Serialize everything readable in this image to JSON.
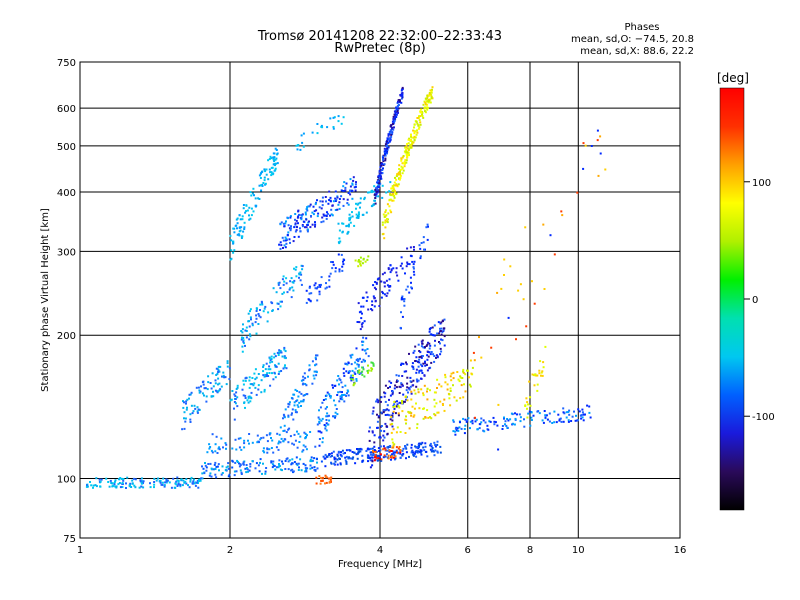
{
  "chart_data": {
    "type": "scatter",
    "title": "Tromsø 20141208 22:32:00–22:33:43",
    "subtitle": "RwPretec (8p)",
    "xlabel": "Frequency [MHz]",
    "ylabel": "Stationary phase Virtual Height [km]",
    "x_scale": "log",
    "y_scale": "log",
    "xlim": [
      1,
      16
    ],
    "ylim": [
      75,
      750
    ],
    "x_ticks": [
      1,
      2,
      4,
      6,
      8,
      10,
      16
    ],
    "y_ticks": [
      75,
      100,
      200,
      300,
      400,
      500,
      600,
      750
    ],
    "grid": true,
    "stats": {
      "heading": "Phases",
      "line1": "mean, sd,O:  −74.5, 20.8",
      "line2": "mean, sd,X:   88.6, 22.2"
    },
    "colorbar": {
      "label": "[deg]",
      "range": [
        -180,
        180
      ],
      "ticks": [
        100,
        0,
        -100
      ],
      "colors": [
        "#000000",
        "#2a0a5a",
        "#1a1adc",
        "#0060ff",
        "#00c8f0",
        "#00e0b0",
        "#00f000",
        "#b0f000",
        "#ffff00",
        "#ffa000",
        "#ff3000",
        "#ff0000"
      ]
    },
    "series": [
      {
        "segments": [
          {
            "x0": 1.03,
            "x1": 1.75,
            "y0": 98,
            "y1": 98,
            "n": 150,
            "spread": 2.5,
            "colors": [
              "#00b4f0",
              "#1e64ff",
              "#00c8f0"
            ]
          },
          {
            "x0": 1.75,
            "x1": 3.1,
            "y0": 104,
            "y1": 108,
            "n": 150,
            "spread": 4,
            "colors": [
              "#1e64ff",
              "#00b4f0",
              "#0050ff"
            ]
          },
          {
            "x0": 3.1,
            "x1": 5.3,
            "y0": 110,
            "y1": 116,
            "n": 220,
            "spread": 4,
            "colors": [
              "#0028ff",
              "#1e64ff",
              "#0050e0"
            ]
          },
          {
            "x0": 3.85,
            "x1": 4.4,
            "y0": 112,
            "y1": 114,
            "n": 35,
            "spread": 3,
            "colors": [
              "#ff3c00",
              "#ff8000",
              "#ff0000"
            ]
          },
          {
            "x0": 2.95,
            "x1": 3.2,
            "y0": 99,
            "y1": 100,
            "n": 25,
            "spread": 2,
            "colors": [
              "#ff5000",
              "#ff8020"
            ]
          },
          {
            "x0": 1.8,
            "x1": 3.0,
            "y0": 118,
            "y1": 120,
            "n": 90,
            "spread": 6,
            "colors": [
              "#00a0ff",
              "#1e64ff"
            ]
          },
          {
            "x0": 1.6,
            "x1": 2.0,
            "y0": 135,
            "y1": 170,
            "n": 90,
            "spread": 10,
            "colors": [
              "#1e64ff",
              "#00b4f0"
            ]
          },
          {
            "x0": 2.0,
            "x1": 2.6,
            "y0": 140,
            "y1": 180,
            "n": 120,
            "spread": 12,
            "colors": [
              "#00b4f0",
              "#1e64ff",
              "#00c8f0"
            ]
          },
          {
            "x0": 2.5,
            "x1": 3.0,
            "y0": 120,
            "y1": 175,
            "n": 80,
            "spread": 10,
            "colors": [
              "#00a0ff",
              "#1e64ff"
            ]
          },
          {
            "x0": 3.0,
            "x1": 3.8,
            "y0": 125,
            "y1": 190,
            "n": 140,
            "spread": 15,
            "colors": [
              "#1e64ff",
              "#0028ff",
              "#00a0ff"
            ]
          },
          {
            "x0": 3.5,
            "x1": 3.9,
            "y0": 160,
            "y1": 175,
            "n": 25,
            "spread": 5,
            "colors": [
              "#a0f000",
              "#40e040"
            ]
          },
          {
            "x0": 3.8,
            "x1": 5.4,
            "y0": 120,
            "y1": 205,
            "n": 260,
            "spread": 18,
            "colors": [
              "#0028ff",
              "#1e1edc",
              "#1e64ff",
              "#2a0a8a"
            ]
          },
          {
            "x0": 4.2,
            "x1": 6.2,
            "y0": 130,
            "y1": 165,
            "n": 130,
            "spread": 14,
            "colors": [
              "#e0ff00",
              "#ffd000",
              "#c8f000",
              "#ffaa00"
            ]
          },
          {
            "x0": 5.6,
            "x1": 10.6,
            "y0": 128,
            "y1": 138,
            "n": 140,
            "spread": 5,
            "colors": [
              "#1e64ff",
              "#00a0ff",
              "#0028ff"
            ]
          },
          {
            "x0": 7.8,
            "x1": 8.6,
            "y0": 140,
            "y1": 180,
            "n": 30,
            "spread": 12,
            "colors": [
              "#ffd000",
              "#e0ff00"
            ]
          },
          {
            "x0": 2.1,
            "x1": 2.8,
            "y0": 200,
            "y1": 270,
            "n": 100,
            "spread": 18,
            "colors": [
              "#00b4f0",
              "#00c8f0",
              "#1e64ff"
            ]
          },
          {
            "x0": 2.85,
            "x1": 3.4,
            "y0": 235,
            "y1": 290,
            "n": 45,
            "spread": 15,
            "colors": [
              "#1e64ff",
              "#0028ff"
            ]
          },
          {
            "x0": 3.6,
            "x1": 4.7,
            "y0": 215,
            "y1": 300,
            "n": 90,
            "spread": 18,
            "colors": [
              "#0028ff",
              "#1e1edc"
            ]
          },
          {
            "x0": 3.5,
            "x1": 3.8,
            "y0": 280,
            "y1": 290,
            "n": 15,
            "spread": 6,
            "colors": [
              "#c8f000",
              "#a0f000"
            ]
          },
          {
            "x0": 2.0,
            "x1": 2.5,
            "y0": 300,
            "y1": 480,
            "n": 120,
            "spread": 25,
            "colors": [
              "#00c8f0",
              "#00b4f0",
              "#00a0ff"
            ]
          },
          {
            "x0": 2.5,
            "x1": 3.6,
            "y0": 320,
            "y1": 410,
            "n": 180,
            "spread": 25,
            "colors": [
              "#1e64ff",
              "#0028ff",
              "#00a0ff",
              "#1e1edc"
            ]
          },
          {
            "x0": 3.3,
            "x1": 4.2,
            "y0": 330,
            "y1": 420,
            "n": 70,
            "spread": 20,
            "colors": [
              "#00b4f0",
              "#00c8f0"
            ]
          },
          {
            "x0": 3.9,
            "x1": 4.45,
            "y0": 380,
            "y1": 650,
            "n": 190,
            "spread": 18,
            "colors": [
              "#1e1edc",
              "#0028ff",
              "#2a0a8a",
              "#1e64ff"
            ]
          },
          {
            "x0": 4.05,
            "x1": 5.1,
            "y0": 330,
            "y1": 650,
            "n": 220,
            "spread": 22,
            "colors": [
              "#ffff00",
              "#e0ff00",
              "#c8f000",
              "#ffd000"
            ]
          },
          {
            "x0": 2.7,
            "x1": 3.4,
            "y0": 500,
            "y1": 580,
            "n": 25,
            "spread": 20,
            "colors": [
              "#00c8f0",
              "#00a0ff"
            ]
          },
          {
            "x0": 4.4,
            "x1": 5.0,
            "y0": 220,
            "y1": 330,
            "n": 35,
            "spread": 15,
            "colors": [
              "#0028ff",
              "#1e64ff"
            ]
          },
          {
            "x0": 5.9,
            "x1": 11.5,
            "y0": 100,
            "y1": 500,
            "n": 40,
            "spread": 80,
            "colors": [
              "#ff3c00",
              "#ffd000",
              "#0028ff",
              "#ffaa00"
            ]
          }
        ]
      }
    ]
  }
}
